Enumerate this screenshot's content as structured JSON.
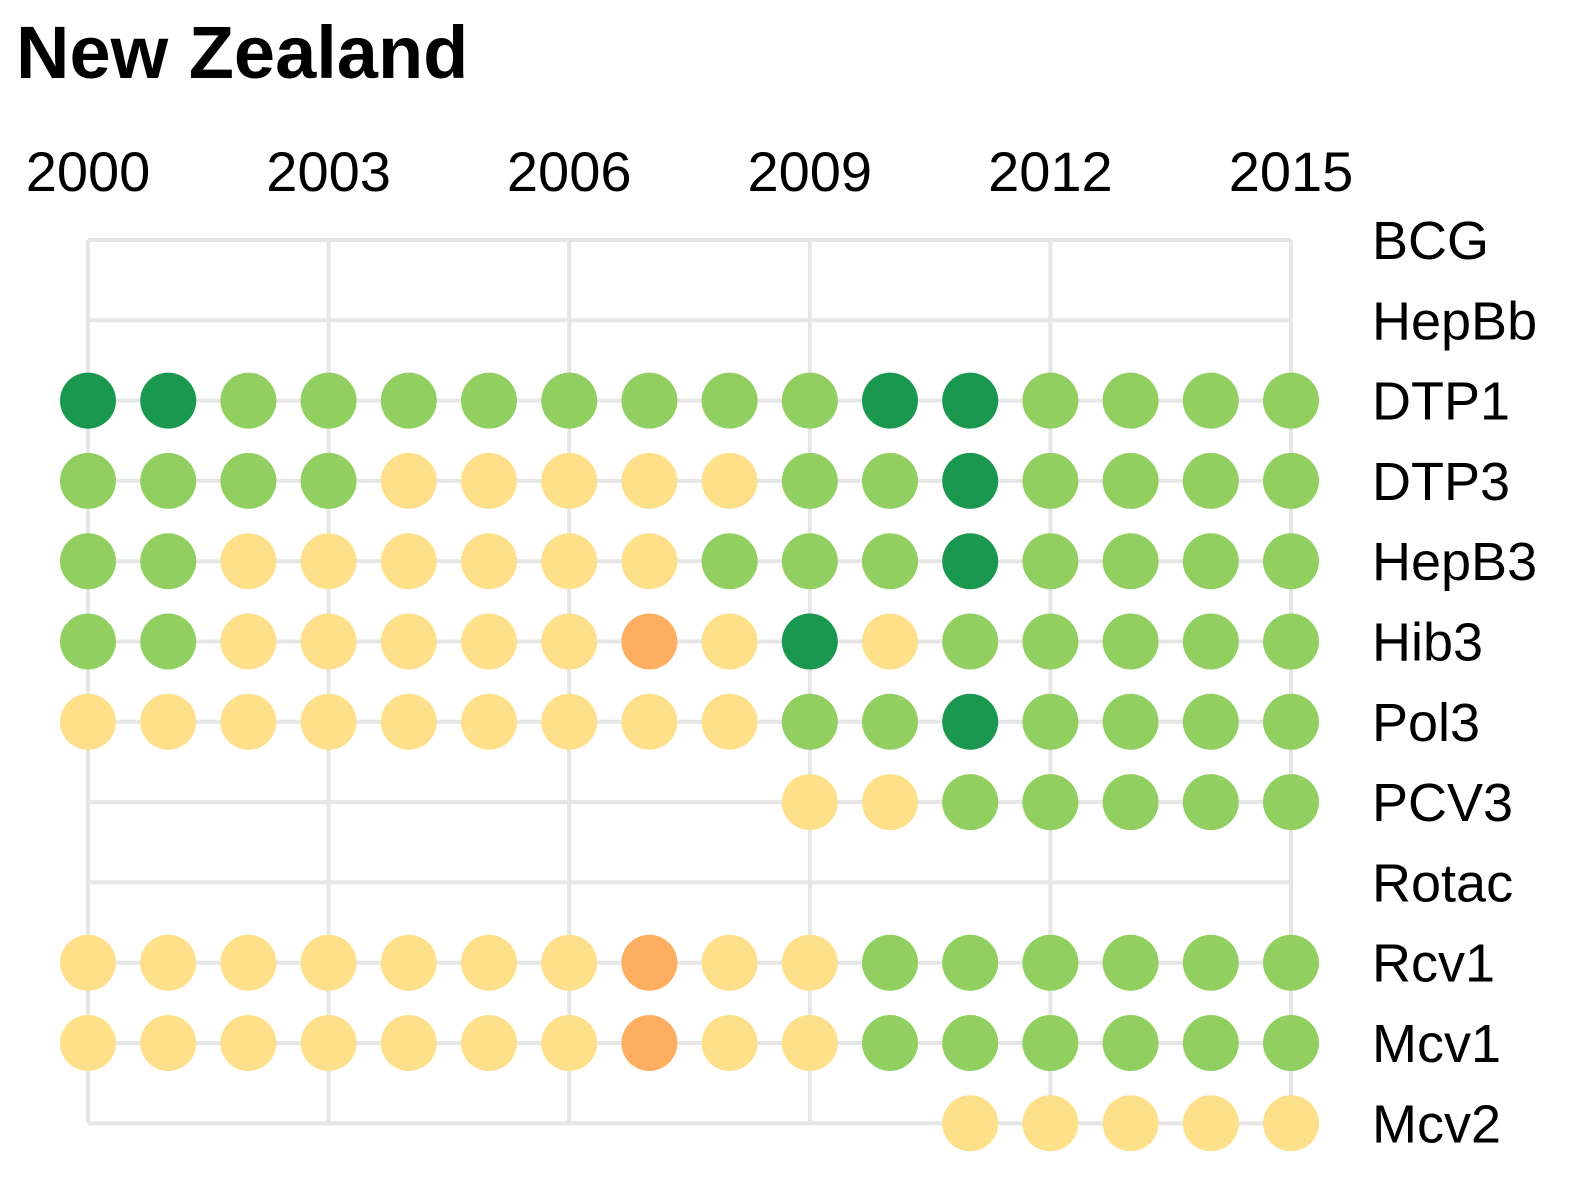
{
  "chart_data": {
    "type": "dot-matrix",
    "title": "New Zealand",
    "years": [
      2000,
      2001,
      2002,
      2003,
      2004,
      2005,
      2006,
      2007,
      2008,
      2009,
      2010,
      2011,
      2012,
      2013,
      2014,
      2015
    ],
    "year_tick_labels": [
      {
        "year": 2000,
        "label": "2000"
      },
      {
        "year": 2003,
        "label": "2003"
      },
      {
        "year": 2006,
        "label": "2006"
      },
      {
        "year": 2009,
        "label": "2009"
      },
      {
        "year": 2012,
        "label": "2012"
      },
      {
        "year": 2015,
        "label": "2015"
      }
    ],
    "category_colors": {
      "dark_green": "#1a9850",
      "green": "#91cf60",
      "yellow": "#fee08b",
      "orange": "#fdae61"
    },
    "grid_color": "#e6e6e6",
    "vaccines": [
      {
        "name": "BCG",
        "line_range": [
          2000,
          2015
        ],
        "dots": []
      },
      {
        "name": "HepBb",
        "line_range": [
          2000,
          2015
        ],
        "dots": []
      },
      {
        "name": "DTP1",
        "line_range": [
          2000,
          2015
        ],
        "dots": [
          {
            "year": 2000,
            "category": "dark_green"
          },
          {
            "year": 2001,
            "category": "dark_green"
          },
          {
            "year": 2002,
            "category": "green"
          },
          {
            "year": 2003,
            "category": "green"
          },
          {
            "year": 2004,
            "category": "green"
          },
          {
            "year": 2005,
            "category": "green"
          },
          {
            "year": 2006,
            "category": "green"
          },
          {
            "year": 2007,
            "category": "green"
          },
          {
            "year": 2008,
            "category": "green"
          },
          {
            "year": 2009,
            "category": "green"
          },
          {
            "year": 2010,
            "category": "dark_green"
          },
          {
            "year": 2011,
            "category": "dark_green"
          },
          {
            "year": 2012,
            "category": "green"
          },
          {
            "year": 2013,
            "category": "green"
          },
          {
            "year": 2014,
            "category": "green"
          },
          {
            "year": 2015,
            "category": "green"
          }
        ]
      },
      {
        "name": "DTP3",
        "line_range": [
          2000,
          2015
        ],
        "dots": [
          {
            "year": 2000,
            "category": "green"
          },
          {
            "year": 2001,
            "category": "green"
          },
          {
            "year": 2002,
            "category": "green"
          },
          {
            "year": 2003,
            "category": "green"
          },
          {
            "year": 2004,
            "category": "yellow"
          },
          {
            "year": 2005,
            "category": "yellow"
          },
          {
            "year": 2006,
            "category": "yellow"
          },
          {
            "year": 2007,
            "category": "yellow"
          },
          {
            "year": 2008,
            "category": "yellow"
          },
          {
            "year": 2009,
            "category": "green"
          },
          {
            "year": 2010,
            "category": "green"
          },
          {
            "year": 2011,
            "category": "dark_green"
          },
          {
            "year": 2012,
            "category": "green"
          },
          {
            "year": 2013,
            "category": "green"
          },
          {
            "year": 2014,
            "category": "green"
          },
          {
            "year": 2015,
            "category": "green"
          }
        ]
      },
      {
        "name": "HepB3",
        "line_range": [
          2000,
          2015
        ],
        "dots": [
          {
            "year": 2000,
            "category": "green"
          },
          {
            "year": 2001,
            "category": "green"
          },
          {
            "year": 2002,
            "category": "yellow"
          },
          {
            "year": 2003,
            "category": "yellow"
          },
          {
            "year": 2004,
            "category": "yellow"
          },
          {
            "year": 2005,
            "category": "yellow"
          },
          {
            "year": 2006,
            "category": "yellow"
          },
          {
            "year": 2007,
            "category": "yellow"
          },
          {
            "year": 2008,
            "category": "green"
          },
          {
            "year": 2009,
            "category": "green"
          },
          {
            "year": 2010,
            "category": "green"
          },
          {
            "year": 2011,
            "category": "dark_green"
          },
          {
            "year": 2012,
            "category": "green"
          },
          {
            "year": 2013,
            "category": "green"
          },
          {
            "year": 2014,
            "category": "green"
          },
          {
            "year": 2015,
            "category": "green"
          }
        ]
      },
      {
        "name": "Hib3",
        "line_range": [
          2000,
          2015
        ],
        "dots": [
          {
            "year": 2000,
            "category": "green"
          },
          {
            "year": 2001,
            "category": "green"
          },
          {
            "year": 2002,
            "category": "yellow"
          },
          {
            "year": 2003,
            "category": "yellow"
          },
          {
            "year": 2004,
            "category": "yellow"
          },
          {
            "year": 2005,
            "category": "yellow"
          },
          {
            "year": 2006,
            "category": "yellow"
          },
          {
            "year": 2007,
            "category": "orange"
          },
          {
            "year": 2008,
            "category": "yellow"
          },
          {
            "year": 2009,
            "category": "dark_green"
          },
          {
            "year": 2010,
            "category": "yellow"
          },
          {
            "year": 2011,
            "category": "green"
          },
          {
            "year": 2012,
            "category": "green"
          },
          {
            "year": 2013,
            "category": "green"
          },
          {
            "year": 2014,
            "category": "green"
          },
          {
            "year": 2015,
            "category": "green"
          }
        ]
      },
      {
        "name": "Pol3",
        "line_range": [
          2000,
          2015
        ],
        "dots": [
          {
            "year": 2000,
            "category": "yellow"
          },
          {
            "year": 2001,
            "category": "yellow"
          },
          {
            "year": 2002,
            "category": "yellow"
          },
          {
            "year": 2003,
            "category": "yellow"
          },
          {
            "year": 2004,
            "category": "yellow"
          },
          {
            "year": 2005,
            "category": "yellow"
          },
          {
            "year": 2006,
            "category": "yellow"
          },
          {
            "year": 2007,
            "category": "yellow"
          },
          {
            "year": 2008,
            "category": "yellow"
          },
          {
            "year": 2009,
            "category": "green"
          },
          {
            "year": 2010,
            "category": "green"
          },
          {
            "year": 2011,
            "category": "dark_green"
          },
          {
            "year": 2012,
            "category": "green"
          },
          {
            "year": 2013,
            "category": "green"
          },
          {
            "year": 2014,
            "category": "green"
          },
          {
            "year": 2015,
            "category": "green"
          }
        ]
      },
      {
        "name": "PCV3",
        "line_range": [
          2000,
          2015
        ],
        "dots": [
          {
            "year": 2009,
            "category": "yellow"
          },
          {
            "year": 2010,
            "category": "yellow"
          },
          {
            "year": 2011,
            "category": "green"
          },
          {
            "year": 2012,
            "category": "green"
          },
          {
            "year": 2013,
            "category": "green"
          },
          {
            "year": 2014,
            "category": "green"
          },
          {
            "year": 2015,
            "category": "green"
          }
        ]
      },
      {
        "name": "Rotac",
        "line_range": [
          2000,
          2015
        ],
        "dots": []
      },
      {
        "name": "Rcv1",
        "line_range": [
          2000,
          2015
        ],
        "dots": [
          {
            "year": 2000,
            "category": "yellow"
          },
          {
            "year": 2001,
            "category": "yellow"
          },
          {
            "year": 2002,
            "category": "yellow"
          },
          {
            "year": 2003,
            "category": "yellow"
          },
          {
            "year": 2004,
            "category": "yellow"
          },
          {
            "year": 2005,
            "category": "yellow"
          },
          {
            "year": 2006,
            "category": "yellow"
          },
          {
            "year": 2007,
            "category": "orange"
          },
          {
            "year": 2008,
            "category": "yellow"
          },
          {
            "year": 2009,
            "category": "yellow"
          },
          {
            "year": 2010,
            "category": "green"
          },
          {
            "year": 2011,
            "category": "green"
          },
          {
            "year": 2012,
            "category": "green"
          },
          {
            "year": 2013,
            "category": "green"
          },
          {
            "year": 2014,
            "category": "green"
          },
          {
            "year": 2015,
            "category": "green"
          }
        ]
      },
      {
        "name": "Mcv1",
        "line_range": [
          2000,
          2015
        ],
        "dots": [
          {
            "year": 2000,
            "category": "yellow"
          },
          {
            "year": 2001,
            "category": "yellow"
          },
          {
            "year": 2002,
            "category": "yellow"
          },
          {
            "year": 2003,
            "category": "yellow"
          },
          {
            "year": 2004,
            "category": "yellow"
          },
          {
            "year": 2005,
            "category": "yellow"
          },
          {
            "year": 2006,
            "category": "yellow"
          },
          {
            "year": 2007,
            "category": "orange"
          },
          {
            "year": 2008,
            "category": "yellow"
          },
          {
            "year": 2009,
            "category": "yellow"
          },
          {
            "year": 2010,
            "category": "green"
          },
          {
            "year": 2011,
            "category": "green"
          },
          {
            "year": 2012,
            "category": "green"
          },
          {
            "year": 2013,
            "category": "green"
          },
          {
            "year": 2014,
            "category": "green"
          },
          {
            "year": 2015,
            "category": "green"
          }
        ]
      },
      {
        "name": "Mcv2",
        "line_range": [
          2000,
          2015
        ],
        "dots": [
          {
            "year": 2011,
            "category": "yellow"
          },
          {
            "year": 2012,
            "category": "yellow"
          },
          {
            "year": 2013,
            "category": "yellow"
          },
          {
            "year": 2014,
            "category": "yellow"
          },
          {
            "year": 2015,
            "category": "yellow"
          }
        ]
      }
    ]
  }
}
